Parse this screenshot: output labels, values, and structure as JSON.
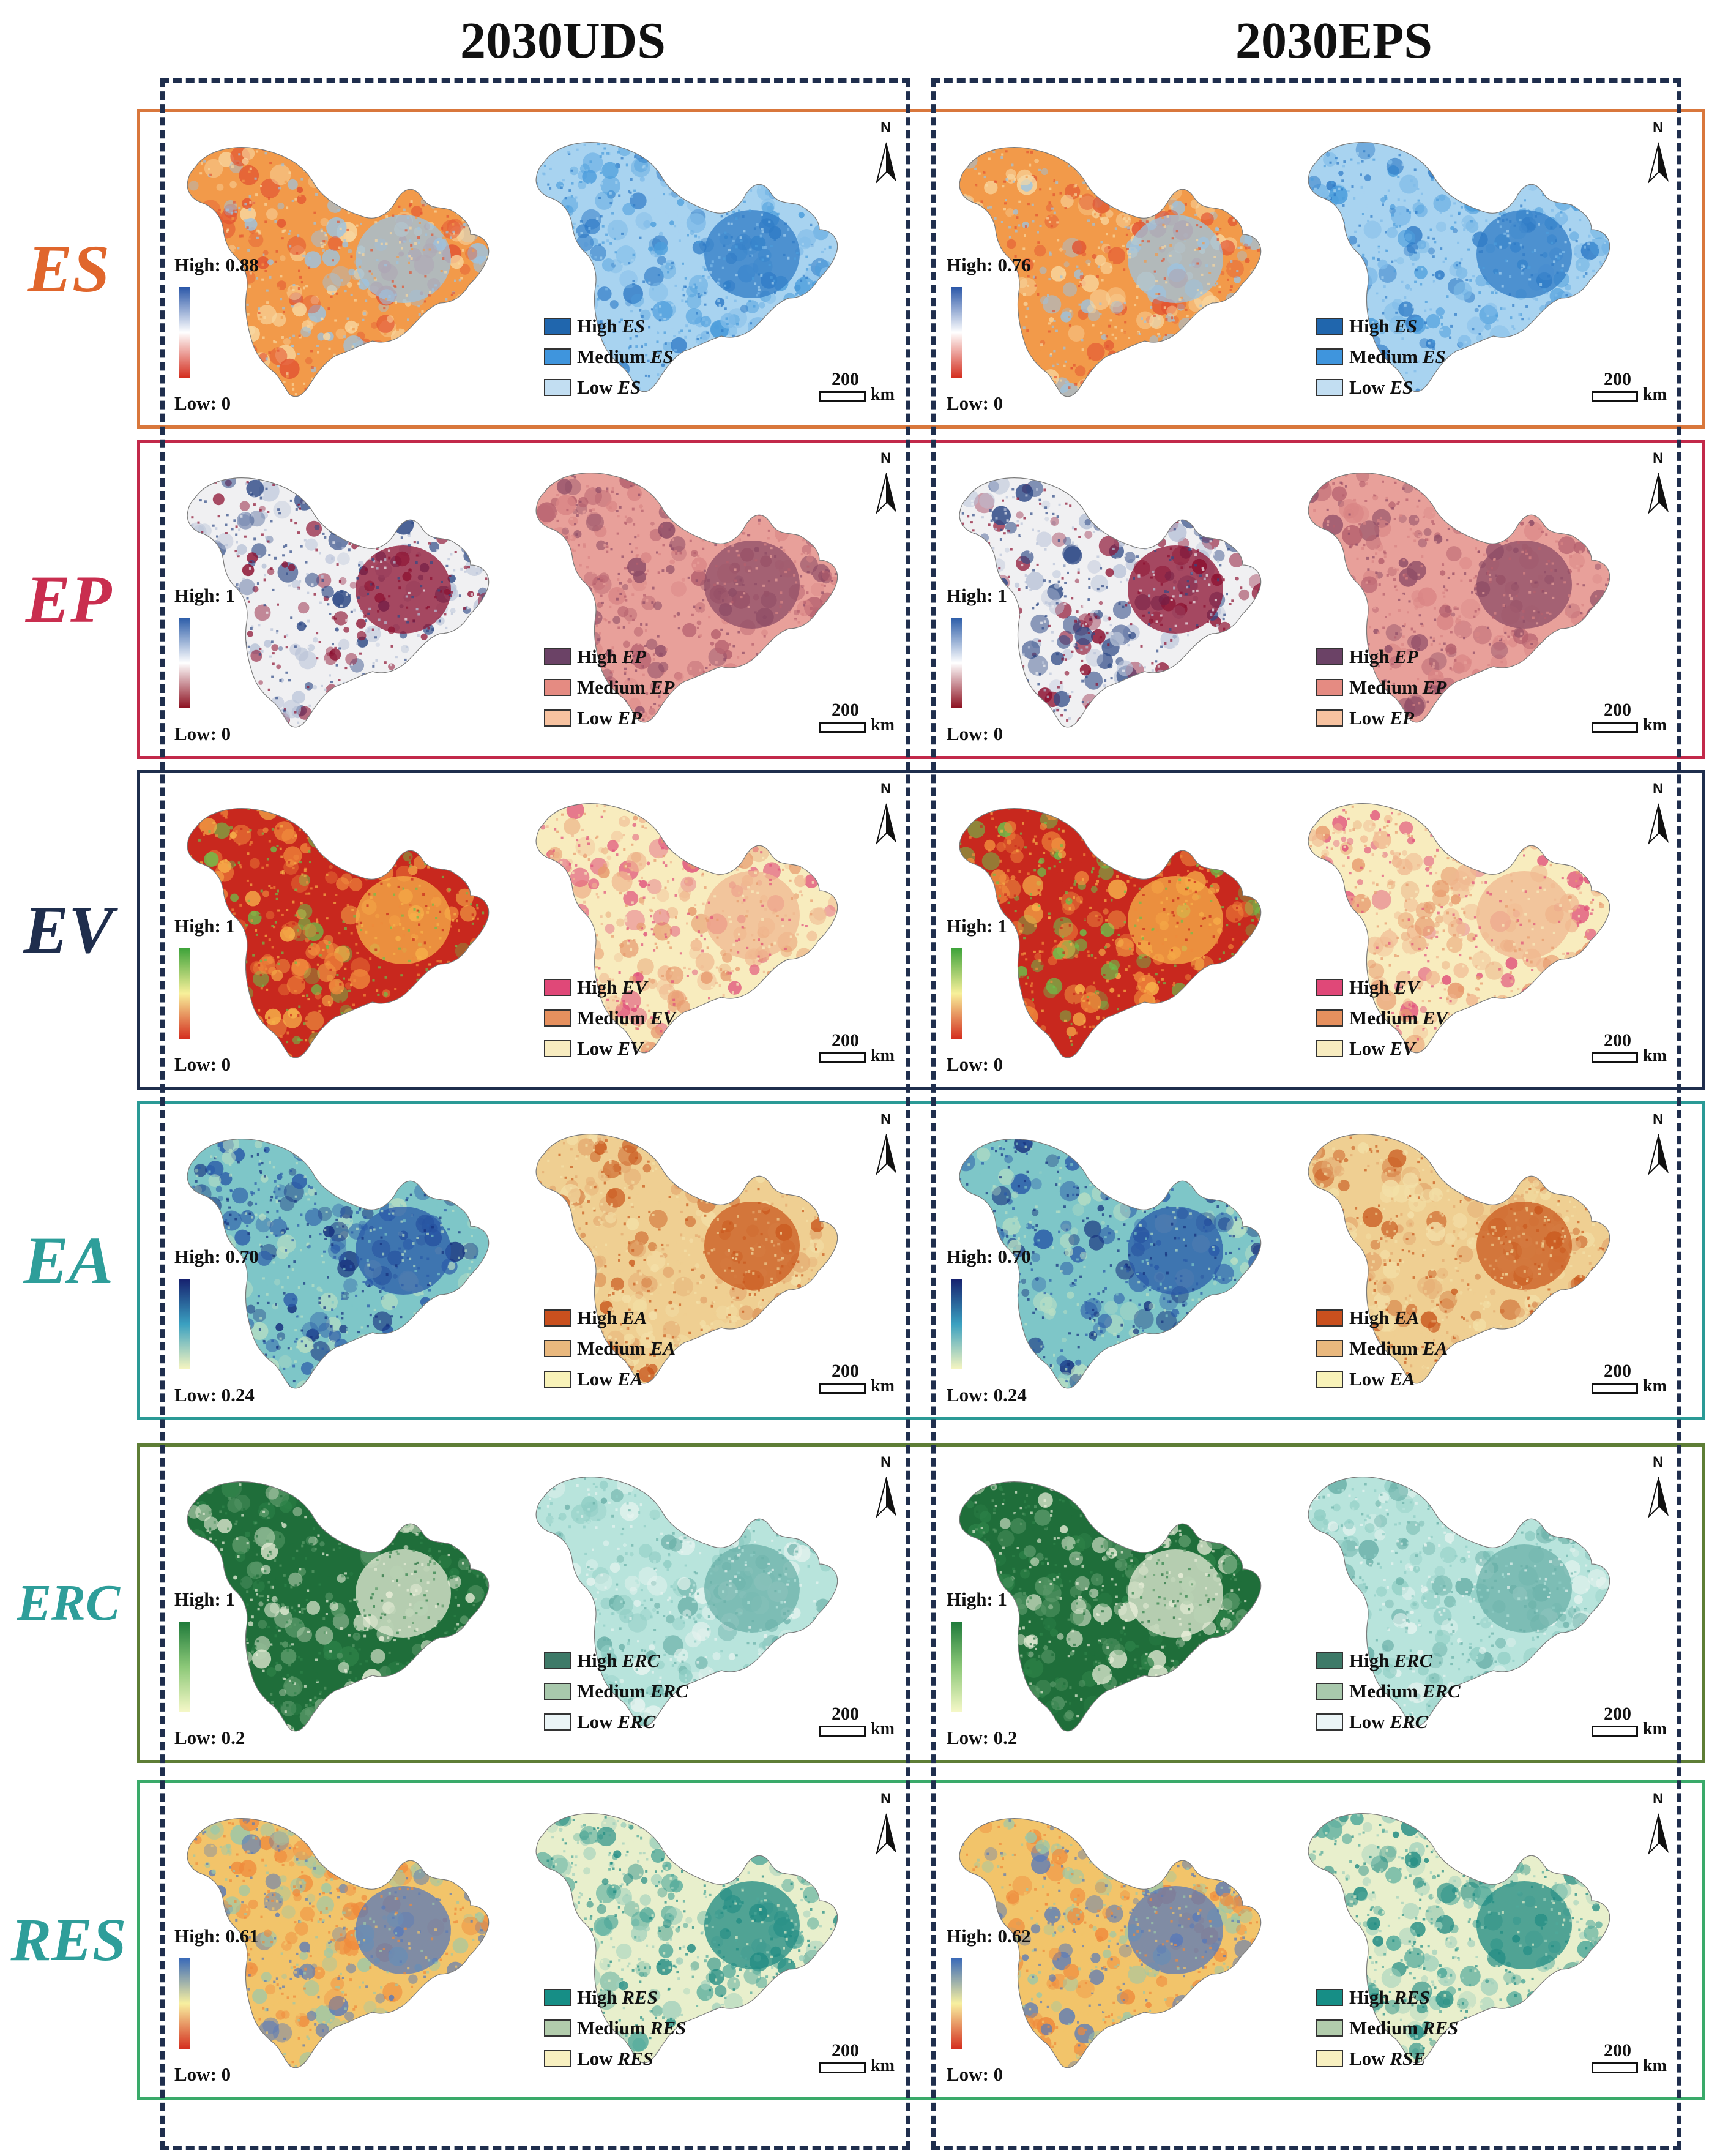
{
  "titles": {
    "left": "2030UDS",
    "right": "2030EPS"
  },
  "common": {
    "north": "N",
    "scale_value": "200",
    "scale_unit": "km"
  },
  "colors": {
    "dash": "#1f2e4d"
  },
  "rows": [
    {
      "key": "ES",
      "label": "ES",
      "label_color": "#e0662c",
      "border_color": "#d9773c",
      "continuous": {
        "gradient": [
          "#2b57a8",
          "#ffffff",
          "#d42e1f"
        ],
        "base": [
          "#f29a4a",
          "#f8d7a0",
          "#9cc3e0",
          "#e25432"
        ]
      },
      "classified": {
        "base": [
          "#a8d3f0",
          "#4b9ddc",
          "#2f7bc6",
          "#7fbbe8"
        ],
        "items": [
          {
            "prefix": "High",
            "term": "ES",
            "color": "#2066ad"
          },
          {
            "prefix": "Medium",
            "term": "ES",
            "color": "#3f95dd"
          },
          {
            "prefix": "Low",
            "term": "ES",
            "color": "#c2def2"
          }
        ]
      },
      "panels": [
        {
          "high": "High: 0.88",
          "low": "Low: 0"
        },
        {
          "high": "High: 0.76",
          "low": "Low: 0"
        }
      ]
    },
    {
      "key": "EP",
      "label": "EP",
      "label_color": "#c92e4f",
      "border_color": "#c2294a",
      "continuous": {
        "gradient": [
          "#2b5ca8",
          "#ffffff",
          "#8c0f1f"
        ],
        "base": [
          "#f0f0f2",
          "#2f4a86",
          "#8c1030",
          "#b9c3d8"
        ]
      },
      "classified": {
        "base": [
          "#e8a09a",
          "#b5606e",
          "#8e4c66",
          "#d98585"
        ],
        "items": [
          {
            "prefix": "High",
            "term": "EP",
            "color": "#6b4266"
          },
          {
            "prefix": "Medium",
            "term": "EP",
            "color": "#e58b82"
          },
          {
            "prefix": "Low",
            "term": "EP",
            "color": "#f7c2a0"
          }
        ]
      },
      "panels": [
        {
          "high": "High: 1",
          "low": "Low: 0"
        },
        {
          "high": "High: 1",
          "low": "Low: 0"
        }
      ]
    },
    {
      "key": "EV",
      "label": "EV",
      "label_color": "#1f2e4d",
      "border_color": "#1f2e4d",
      "continuous": {
        "gradient": [
          "#3ea33a",
          "#f8f09a",
          "#d42e1f"
        ],
        "base": [
          "#c8281e",
          "#f08a3c",
          "#f7b24a",
          "#6cbf4a"
        ]
      },
      "classified": {
        "base": [
          "#f8ecbe",
          "#e79a6e",
          "#f0b890",
          "#e0507a"
        ],
        "items": [
          {
            "prefix": "High",
            "term": "EV",
            "color": "#e04878"
          },
          {
            "prefix": "Medium",
            "term": "EV",
            "color": "#e6905e"
          },
          {
            "prefix": "Low",
            "term": "EV",
            "color": "#f8ecc0"
          }
        ]
      },
      "panels": [
        {
          "high": "High: 1",
          "low": "Low: 0"
        },
        {
          "high": "High: 1",
          "low": "Low: 0"
        }
      ]
    },
    {
      "key": "EA",
      "label": "EA",
      "label_color": "#2e9e9a",
      "border_color": "#2a9a96",
      "continuous": {
        "gradient": [
          "#16206e",
          "#3aa0c0",
          "#f8f6c0"
        ],
        "base": [
          "#7ec6c8",
          "#b9dfc4",
          "#2a5aa8",
          "#16307e"
        ]
      },
      "classified": {
        "base": [
          "#efcf92",
          "#e4a970",
          "#c9581e",
          "#f3e0a8"
        ],
        "items": [
          {
            "prefix": "High",
            "term": "EA",
            "color": "#c9501e"
          },
          {
            "prefix": "Medium",
            "term": "EA",
            "color": "#e9b87e"
          },
          {
            "prefix": "Low",
            "term": "EA",
            "color": "#f8f2b8"
          }
        ]
      },
      "panels": [
        {
          "high": "High: 0.70",
          "low": "Low: 0.24"
        },
        {
          "high": "High: 0.70",
          "low": "Low: 0.24"
        }
      ]
    },
    {
      "key": "ERC",
      "label": "ERC",
      "label_color": "#2e9e9a",
      "border_color": "#5e7e36",
      "continuous": {
        "gradient": [
          "#1e7a3a",
          "#8cc878",
          "#f6f8c8"
        ],
        "base": [
          "#1f6e3a",
          "#2d8248",
          "#e8eed8",
          "#5b9a6a"
        ]
      },
      "classified": {
        "base": [
          "#b8e4dc",
          "#8fcdc4",
          "#6ab0a8",
          "#e8f4f0"
        ],
        "items": [
          {
            "prefix": "High",
            "term": "ERC",
            "color": "#3e7a68"
          },
          {
            "prefix": "Medium",
            "term": "ERC",
            "color": "#a8c8ac"
          },
          {
            "prefix": "Low",
            "term": "ERC",
            "color": "#eaf4f6"
          }
        ]
      },
      "panels": [
        {
          "high": "High: 1",
          "low": "Low: 0.2"
        },
        {
          "high": "High: 1",
          "low": "Low: 0.2"
        }
      ]
    },
    {
      "key": "RES",
      "label": "RES",
      "label_color": "#2e9e9a",
      "border_color": "#3aaa6a",
      "continuous": {
        "gradient": [
          "#3a6ab8",
          "#f8f0a0",
          "#d42e1f"
        ],
        "base": [
          "#f2c46a",
          "#9cc8a8",
          "#5a7ab8",
          "#ef8a3c"
        ]
      },
      "classified": {
        "base": [
          "#e8efcc",
          "#4fa89a",
          "#1e8a82",
          "#9fd0bc"
        ],
        "items": [
          {
            "prefix": "High",
            "term": "RES",
            "color": "#168e86"
          },
          {
            "prefix": "Medium",
            "term": "RES",
            "color": "#b2ccac"
          },
          {
            "prefix": "Low",
            "term": "RES",
            "color": "#f8f0c0"
          }
        ]
      },
      "items_right_override": [
        {
          "prefix": "High",
          "term": "RES"
        },
        {
          "prefix": "Medium",
          "term": "RES"
        },
        {
          "prefix": "Low",
          "term": "RSE"
        }
      ],
      "panels": [
        {
          "high": "High: 0.61",
          "low": "Low: 0"
        },
        {
          "high": "High: 0.62",
          "low": "Low: 0"
        }
      ]
    }
  ]
}
